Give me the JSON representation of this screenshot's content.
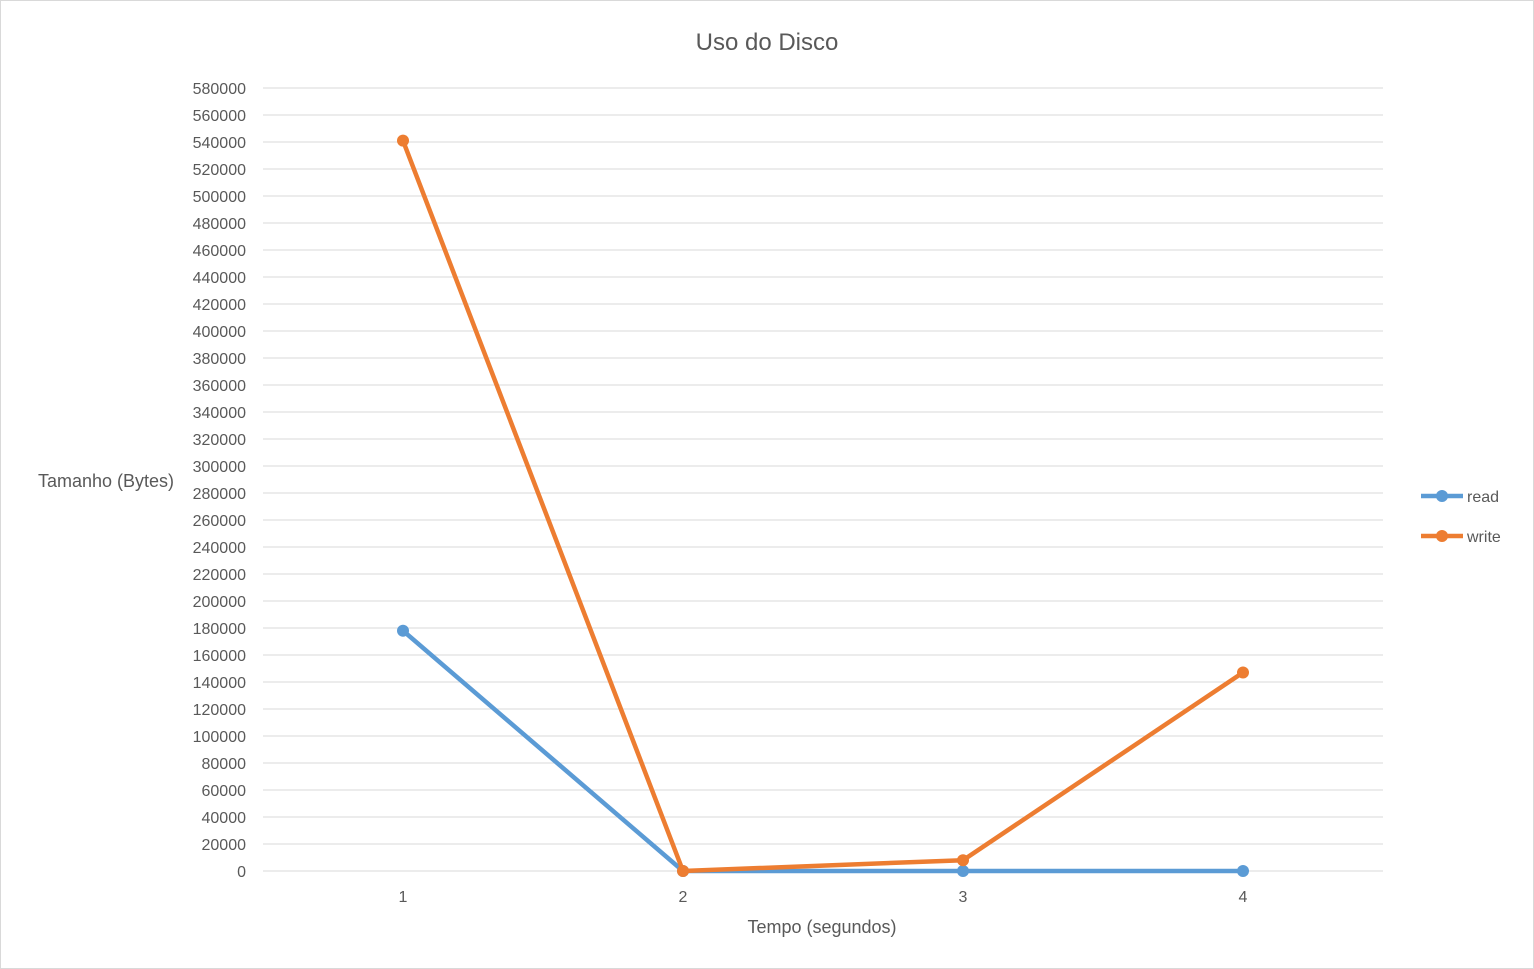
{
  "chart_data": {
    "type": "line",
    "title": "Uso do Disco",
    "xlabel": "Tempo (segundos)",
    "ylabel": "Tamanho (Bytes)",
    "x": [
      1,
      2,
      3,
      4
    ],
    "x_tick_labels": [
      "1",
      "2",
      "3",
      "4"
    ],
    "ylim": [
      0,
      580000
    ],
    "y_tick_step": 20000,
    "grid": true,
    "legend_position": "right",
    "series": [
      {
        "name": "read",
        "color": "#5b9bd5",
        "values": [
          178000,
          0,
          0,
          0
        ]
      },
      {
        "name": "write",
        "color": "#ed7d31",
        "values": [
          541000,
          0,
          8000,
          147000
        ]
      }
    ]
  }
}
